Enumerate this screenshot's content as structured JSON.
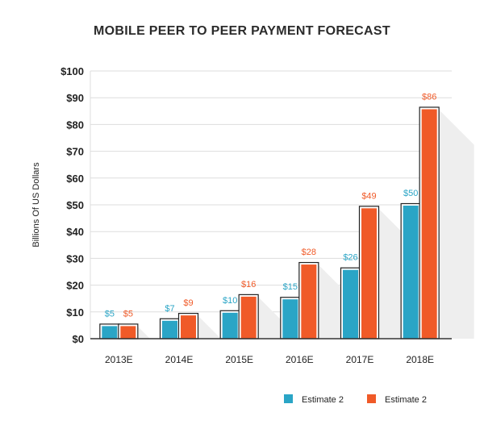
{
  "colors": {
    "series1": "#2aa5c6",
    "series2": "#f05a28",
    "series1_label": "#2aa5c6",
    "series2_label": "#f05a28",
    "grid": "#dddddd",
    "axis": "#333333",
    "text": "#222222",
    "shadow": "#eeeeee"
  },
  "chart_data": {
    "type": "bar",
    "title": "MOBILE PEER TO PEER PAYMENT FORECAST",
    "xlabel": "",
    "ylabel": "Billions Of US Dollars",
    "ylim": [
      0,
      100
    ],
    "ytick_values": [
      0,
      10,
      20,
      30,
      40,
      50,
      60,
      70,
      80,
      90,
      100
    ],
    "ytick_labels": [
      "$0",
      "$10",
      "$20",
      "$30",
      "$40",
      "$50",
      "$60",
      "$70",
      "$80",
      "$90",
      "$100"
    ],
    "grid": true,
    "legend_position": "bottom-right",
    "categories": [
      "2013E",
      "2014E",
      "2015E",
      "2016E",
      "2017E",
      "2018E"
    ],
    "series": [
      {
        "name": "Estimate 2",
        "values": [
          5,
          7,
          10,
          15,
          26,
          50
        ],
        "labels": [
          "$5",
          "$7",
          "$10",
          "$15",
          "$26",
          "$50"
        ]
      },
      {
        "name": "Estimate 2",
        "values": [
          5,
          9,
          16,
          28,
          49,
          86
        ],
        "labels": [
          "$5",
          "$9",
          "$16",
          "$28",
          "$49",
          "$86"
        ]
      }
    ]
  }
}
